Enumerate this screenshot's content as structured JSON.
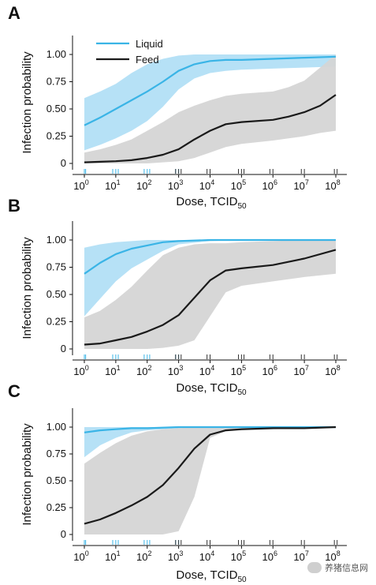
{
  "chart_data": [
    {
      "type": "line",
      "panel": "A",
      "xscale": "log10",
      "xlim": [
        1,
        100000000
      ],
      "ylim": [
        0,
        1
      ],
      "xlabel": "Dose, TCID",
      "xlabel_sub": "50",
      "ylabel": "Infection probability",
      "yticks": [
        "0",
        "0.25",
        "0.50",
        "0.75",
        "1.00"
      ],
      "xticks": [
        "10^0",
        "10^1",
        "10^2",
        "10^3",
        "10^4",
        "10^5",
        "10^6",
        "10^7",
        "10^8"
      ],
      "legend": {
        "position": "top-left",
        "entries": [
          "Liquid",
          "Feed"
        ]
      },
      "series": [
        {
          "name": "Liquid",
          "color": "#3ab4e6",
          "band_color": "#a9dcf5",
          "x": [
            1,
            3.16,
            10,
            31.6,
            100,
            316,
            1000,
            3160,
            10000,
            31600,
            100000,
            1000000,
            10000000,
            100000000
          ],
          "y": [
            0.35,
            0.42,
            0.5,
            0.58,
            0.66,
            0.75,
            0.85,
            0.91,
            0.94,
            0.95,
            0.95,
            0.96,
            0.97,
            0.98
          ],
          "lower": [
            0.12,
            0.17,
            0.23,
            0.3,
            0.39,
            0.52,
            0.68,
            0.78,
            0.83,
            0.85,
            0.86,
            0.87,
            0.88,
            0.89
          ],
          "upper": [
            0.6,
            0.66,
            0.73,
            0.83,
            0.91,
            0.96,
            0.99,
            1.0,
            1.0,
            1.0,
            1.0,
            1.0,
            1.0,
            1.0
          ]
        },
        {
          "name": "Feed",
          "color": "#1a1a1a",
          "band_color": "#d5d5d5",
          "x": [
            1,
            3.16,
            10,
            31.6,
            100,
            316,
            1000,
            3160,
            10000,
            31600,
            100000,
            1000000,
            3160000,
            10000000,
            31600000,
            100000000
          ],
          "y": [
            0.01,
            0.015,
            0.02,
            0.03,
            0.05,
            0.08,
            0.13,
            0.22,
            0.3,
            0.36,
            0.38,
            0.4,
            0.43,
            0.47,
            0.53,
            0.63
          ],
          "lower": [
            0.0,
            0.0,
            0.0,
            0.0,
            0.0,
            0.01,
            0.02,
            0.05,
            0.1,
            0.15,
            0.18,
            0.21,
            0.23,
            0.25,
            0.28,
            0.3
          ],
          "upper": [
            0.1,
            0.13,
            0.17,
            0.22,
            0.3,
            0.38,
            0.47,
            0.53,
            0.58,
            0.62,
            0.64,
            0.66,
            0.7,
            0.76,
            0.88,
            1.0
          ]
        }
      ],
      "rug": {
        "Liquid": [
          1,
          1.1,
          8,
          10,
          12,
          80,
          100,
          120,
          800,
          1000
        ],
        "Feed": [
          800,
          1000,
          1200,
          8000,
          10000,
          80000,
          100000,
          120000,
          800000,
          1000000,
          8000000,
          10000000,
          90000000,
          110000000
        ]
      }
    },
    {
      "type": "line",
      "panel": "B",
      "xscale": "log10",
      "xlim": [
        1,
        100000000
      ],
      "ylim": [
        0,
        1
      ],
      "xlabel": "Dose, TCID",
      "xlabel_sub": "50",
      "ylabel": "Infection probability",
      "yticks": [
        "0",
        "0.25",
        "0.50",
        "0.75",
        "1.00"
      ],
      "xticks": [
        "10^0",
        "10^1",
        "10^2",
        "10^3",
        "10^4",
        "10^5",
        "10^6",
        "10^7",
        "10^8"
      ],
      "series": [
        {
          "name": "Liquid",
          "color": "#3ab4e6",
          "band_color": "#a9dcf5",
          "x": [
            1,
            3.16,
            10,
            31.6,
            100,
            316,
            1000,
            10000,
            100000,
            1000000,
            100000000
          ],
          "y": [
            0.69,
            0.79,
            0.87,
            0.92,
            0.95,
            0.98,
            0.99,
            1.0,
            1.0,
            1.0,
            1.0
          ],
          "lower": [
            0.3,
            0.46,
            0.62,
            0.74,
            0.82,
            0.9,
            0.96,
            0.99,
            1.0,
            1.0,
            1.0
          ],
          "upper": [
            0.93,
            0.96,
            0.98,
            0.99,
            1.0,
            1.0,
            1.0,
            1.0,
            1.0,
            1.0,
            1.0
          ]
        },
        {
          "name": "Feed",
          "color": "#1a1a1a",
          "band_color": "#d5d5d5",
          "x": [
            1,
            3.16,
            10,
            31.6,
            100,
            316,
            1000,
            3160,
            10000,
            31600,
            100000,
            1000000,
            10000000,
            100000000
          ],
          "y": [
            0.04,
            0.05,
            0.08,
            0.11,
            0.16,
            0.22,
            0.31,
            0.47,
            0.63,
            0.72,
            0.74,
            0.77,
            0.83,
            0.91
          ],
          "lower": [
            0.0,
            0.0,
            0.0,
            0.0,
            0.0,
            0.01,
            0.03,
            0.08,
            0.3,
            0.52,
            0.58,
            0.62,
            0.66,
            0.69
          ],
          "upper": [
            0.29,
            0.35,
            0.45,
            0.57,
            0.72,
            0.86,
            0.93,
            0.96,
            0.97,
            0.97,
            0.98,
            0.99,
            1.0,
            1.0
          ]
        }
      ],
      "rug": {
        "Liquid": [
          1,
          1.1,
          8,
          10,
          12,
          80,
          100,
          120,
          800,
          1000
        ],
        "Feed": [
          800,
          1000,
          1200,
          8000,
          10000,
          80000,
          100000,
          120000,
          800000,
          1000000,
          8000000,
          10000000,
          90000000,
          110000000
        ]
      }
    },
    {
      "type": "line",
      "panel": "C",
      "xscale": "log10",
      "xlim": [
        1,
        100000000
      ],
      "ylim": [
        0,
        1
      ],
      "xlabel": "Dose, TCID",
      "xlabel_sub": "50",
      "ylabel": "Infection probability",
      "yticks": [
        "0",
        "0.25",
        "0.50",
        "0.75",
        "1.00"
      ],
      "xticks": [
        "10^0",
        "10^1",
        "10^2",
        "10^3",
        "10^4",
        "10^5",
        "10^6",
        "10^7",
        "10^8"
      ],
      "series": [
        {
          "name": "Liquid",
          "color": "#3ab4e6",
          "band_color": "#a9dcf5",
          "x": [
            1,
            3.16,
            10,
            31.6,
            100,
            1000,
            10000,
            100000,
            100000000
          ],
          "y": [
            0.95,
            0.97,
            0.98,
            0.99,
            0.99,
            1.0,
            1.0,
            1.0,
            1.0
          ],
          "lower": [
            0.72,
            0.83,
            0.9,
            0.95,
            0.97,
            0.99,
            1.0,
            1.0,
            1.0
          ],
          "upper": [
            1.0,
            1.0,
            1.0,
            1.0,
            1.0,
            1.0,
            1.0,
            1.0,
            1.0
          ]
        },
        {
          "name": "Feed",
          "color": "#1a1a1a",
          "band_color": "#d5d5d5",
          "x": [
            1,
            3.16,
            10,
            31.6,
            100,
            316,
            1000,
            3160,
            10000,
            31600,
            100000,
            1000000,
            10000000,
            100000000
          ],
          "y": [
            0.1,
            0.14,
            0.2,
            0.27,
            0.35,
            0.46,
            0.62,
            0.8,
            0.93,
            0.97,
            0.98,
            0.99,
            0.99,
            1.0
          ],
          "lower": [
            0.0,
            0.0,
            0.0,
            0.0,
            0.0,
            0.0,
            0.03,
            0.35,
            0.9,
            0.96,
            0.97,
            0.98,
            0.99,
            1.0
          ],
          "upper": [
            0.66,
            0.76,
            0.85,
            0.92,
            0.96,
            0.98,
            0.99,
            1.0,
            1.0,
            1.0,
            1.0,
            1.0,
            1.0,
            1.0
          ]
        }
      ],
      "rug": {
        "Liquid": [
          1,
          1.1,
          8,
          10,
          12,
          80,
          100,
          120,
          800,
          1000
        ],
        "Feed": [
          800,
          1000,
          1200,
          8000,
          10000,
          80000,
          100000,
          120000,
          800000,
          1000000,
          8000000,
          10000000,
          90000000,
          110000000
        ]
      }
    }
  ],
  "watermark": {
    "text": "养猪信息网",
    "icon": "wechat-icon"
  }
}
